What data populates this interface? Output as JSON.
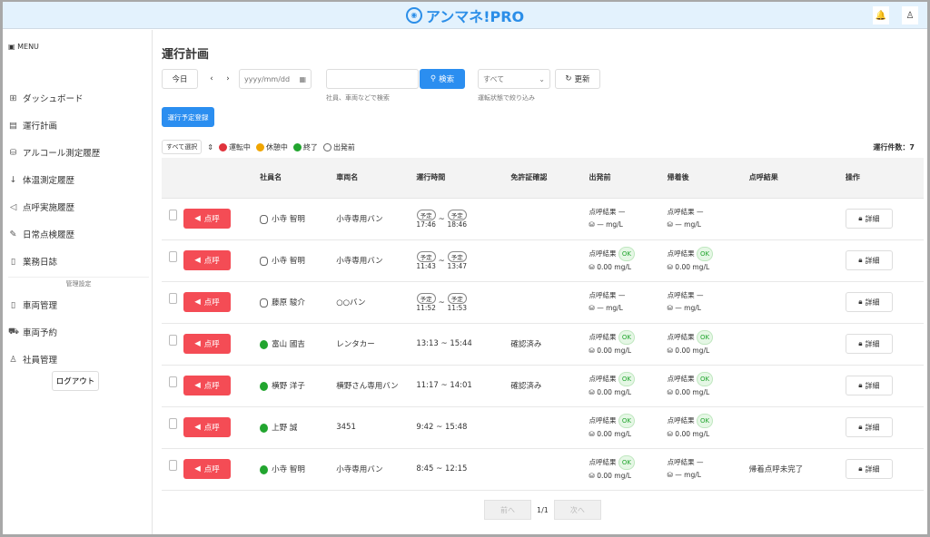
{
  "header": {
    "logo": "アンマネ!PRO",
    "icons": [
      "bell-icon",
      "user-icon"
    ]
  },
  "sidebar": {
    "menu": "MENU",
    "items": [
      {
        "label": "ダッシュボード",
        "icon": "⊞"
      },
      {
        "label": "運行計画",
        "icon": "▤"
      },
      {
        "label": "アルコール測定履歴",
        "icon": "⛁"
      },
      {
        "label": "体温測定履歴",
        "icon": "↓"
      },
      {
        "label": "点呼実施履歴",
        "icon": "◁"
      },
      {
        "label": "日常点検履歴",
        "icon": "✎"
      },
      {
        "label": "業務日誌",
        "icon": "▯"
      }
    ],
    "section": "管理設定",
    "admin_items": [
      {
        "label": "車両管理",
        "icon": "▯"
      },
      {
        "label": "車両予約",
        "icon": "⛟"
      },
      {
        "label": "社員管理",
        "icon": "♙"
      }
    ],
    "logout": "ログアウト"
  },
  "main": {
    "title": "運行計画",
    "today": "今日",
    "date_placeholder": "yyyy/mm/dd",
    "search_placeholder": "",
    "search_button": "検索",
    "search_hint": "社員、車両などで検索",
    "status_select": "すべて",
    "status_hint": "運転状態で絞り込み",
    "refresh": "更新",
    "register": "運行予定登録",
    "select_all": "すべて選択",
    "legend": [
      {
        "label": "運転中",
        "color": "#e0333c"
      },
      {
        "label": "休憩中",
        "color": "#f0a500"
      },
      {
        "label": "終了",
        "color": "#22a52f"
      },
      {
        "label": "出発前",
        "color": "#ffffff"
      }
    ],
    "count": "運行件数：7",
    "columns": [
      "社員名",
      "車両名",
      "運行時間",
      "免許証確認",
      "出発前",
      "帰着後",
      "点呼結果",
      "操作"
    ],
    "roll_label": "点呼",
    "detail_label": "詳細",
    "planned": "予定",
    "alc_label": "点呼結果",
    "rows": [
      {
        "status": "pending",
        "employee": "小寺 智明",
        "vehicle": "小寺専用バン",
        "start": "17:46",
        "end": "18:46",
        "planned": true,
        "license": "",
        "dep_ok": false,
        "dep_value": "— mg/L",
        "ret_ok": false,
        "ret_value": "— mg/L",
        "result": ""
      },
      {
        "status": "pending",
        "employee": "小寺 智明",
        "vehicle": "小寺専用バン",
        "start": "11:43",
        "end": "13:47",
        "planned": true,
        "license": "",
        "dep_ok": true,
        "dep_value": "0.00 mg/L",
        "ret_ok": true,
        "ret_value": "0.00 mg/L",
        "result": ""
      },
      {
        "status": "pending",
        "employee": "藤原 駿介",
        "vehicle": "○○バン",
        "start": "11:52",
        "end": "11:53",
        "planned": true,
        "license": "",
        "dep_ok": false,
        "dep_value": "— mg/L",
        "ret_ok": false,
        "ret_value": "— mg/L",
        "result": ""
      },
      {
        "status": "done",
        "employee": "富山 國吉",
        "vehicle": "レンタカー",
        "start": "13:13",
        "end": "15:44",
        "planned": false,
        "license": "確認済み",
        "dep_ok": true,
        "dep_value": "0.00 mg/L",
        "ret_ok": true,
        "ret_value": "0.00 mg/L",
        "result": ""
      },
      {
        "status": "done",
        "employee": "横野 洋子",
        "vehicle": "横野さん専用バン",
        "start": "11:17",
        "end": "14:01",
        "planned": false,
        "license": "確認済み",
        "dep_ok": true,
        "dep_value": "0.00 mg/L",
        "ret_ok": true,
        "ret_value": "0.00 mg/L",
        "result": ""
      },
      {
        "status": "done",
        "employee": "上野 誠",
        "vehicle": "3451",
        "start": "9:42",
        "end": "15:48",
        "planned": false,
        "license": "",
        "dep_ok": true,
        "dep_value": "0.00 mg/L",
        "ret_ok": true,
        "ret_value": "0.00 mg/L",
        "result": ""
      },
      {
        "status": "done",
        "employee": "小寺 智明",
        "vehicle": "小寺専用バン",
        "start": "8:45",
        "end": "12:15",
        "planned": false,
        "license": "",
        "dep_ok": true,
        "dep_value": "0.00 mg/L",
        "ret_ok": false,
        "ret_value": "— mg/L",
        "result": "帰着点呼未完了"
      }
    ],
    "pager": {
      "prev": "前へ",
      "page": "1/1",
      "next": "次へ"
    }
  }
}
